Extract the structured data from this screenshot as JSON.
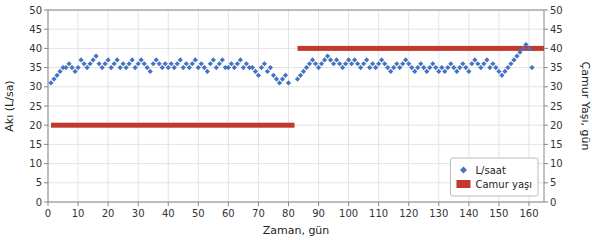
{
  "chart_data": {
    "type": "scatter",
    "xlabel": "Zaman, gün",
    "ylabel": "Akı (L/sa)",
    "y2label": "Çamur Yaşı, gün",
    "xlim": [
      0,
      165
    ],
    "ylim": [
      0,
      50
    ],
    "y2lim": [
      0,
      50
    ],
    "xticks": [
      0,
      10,
      20,
      30,
      40,
      50,
      60,
      70,
      80,
      90,
      100,
      110,
      120,
      130,
      140,
      150,
      160
    ],
    "yticks": [
      0,
      5,
      10,
      15,
      20,
      25,
      30,
      35,
      40,
      45,
      50
    ],
    "y2ticks": [
      0,
      5,
      10,
      15,
      20,
      25,
      30,
      35,
      40,
      45,
      50
    ],
    "grid": true,
    "legend": "lower right",
    "series": [
      {
        "name": "L/saat",
        "type": "scatter",
        "marker": "diamond",
        "color": "#4472C4",
        "x": [
          1,
          2,
          3,
          4,
          5,
          6,
          7,
          8,
          9,
          10,
          11,
          12,
          13,
          14,
          15,
          16,
          17,
          18,
          19,
          20,
          21,
          22,
          23,
          24,
          25,
          26,
          27,
          28,
          29,
          30,
          31,
          32,
          33,
          34,
          35,
          36,
          37,
          38,
          39,
          40,
          41,
          42,
          43,
          44,
          45,
          46,
          47,
          48,
          49,
          50,
          51,
          52,
          53,
          54,
          55,
          56,
          57,
          58,
          59,
          60,
          61,
          62,
          63,
          64,
          65,
          66,
          67,
          68,
          69,
          70,
          71,
          72,
          73,
          74,
          75,
          76,
          77,
          78,
          79,
          80,
          83,
          84,
          85,
          86,
          87,
          88,
          89,
          90,
          91,
          92,
          93,
          94,
          95,
          96,
          97,
          98,
          99,
          100,
          101,
          102,
          103,
          104,
          105,
          106,
          107,
          108,
          109,
          110,
          111,
          112,
          113,
          114,
          115,
          116,
          117,
          118,
          119,
          120,
          121,
          122,
          123,
          124,
          125,
          126,
          127,
          128,
          129,
          130,
          131,
          132,
          133,
          134,
          135,
          136,
          137,
          138,
          139,
          140,
          141,
          142,
          143,
          144,
          145,
          146,
          147,
          148,
          149,
          150,
          151,
          152,
          153,
          154,
          155,
          156,
          157,
          158,
          159,
          160,
          161
        ],
        "values": [
          31,
          32,
          33,
          34,
          35,
          35,
          36,
          35,
          34,
          35,
          37,
          36,
          35,
          36,
          37,
          38,
          36,
          35,
          36,
          37,
          35,
          36,
          37,
          35,
          36,
          35,
          36,
          37,
          35,
          36,
          37,
          36,
          35,
          34,
          36,
          37,
          36,
          35,
          36,
          35,
          36,
          35,
          36,
          37,
          35,
          36,
          35,
          36,
          37,
          35,
          36,
          35,
          34,
          36,
          37,
          35,
          36,
          37,
          35,
          35,
          36,
          35,
          36,
          37,
          35,
          36,
          35,
          35,
          34,
          33,
          35,
          36,
          34,
          35,
          33,
          32,
          31,
          32,
          33,
          31,
          32,
          33,
          34,
          35,
          36,
          37,
          36,
          35,
          36,
          37,
          38,
          37,
          36,
          37,
          36,
          35,
          36,
          37,
          36,
          37,
          36,
          35,
          36,
          37,
          35,
          36,
          35,
          36,
          37,
          36,
          35,
          34,
          35,
          36,
          35,
          36,
          37,
          36,
          35,
          34,
          35,
          36,
          35,
          34,
          35,
          36,
          35,
          34,
          35,
          34,
          35,
          36,
          35,
          34,
          35,
          36,
          35,
          34,
          36,
          37,
          36,
          35,
          36,
          37,
          35,
          36,
          35,
          34,
          33,
          34,
          35,
          36,
          37,
          38,
          39,
          40,
          41,
          40,
          35
        ]
      },
      {
        "name": "Camur yaşı",
        "type": "bar",
        "axis": "y2",
        "color": "#C0392B",
        "left": [
          1,
          83
        ],
        "width": [
          81,
          82
        ],
        "values": [
          20,
          40
        ]
      }
    ]
  }
}
